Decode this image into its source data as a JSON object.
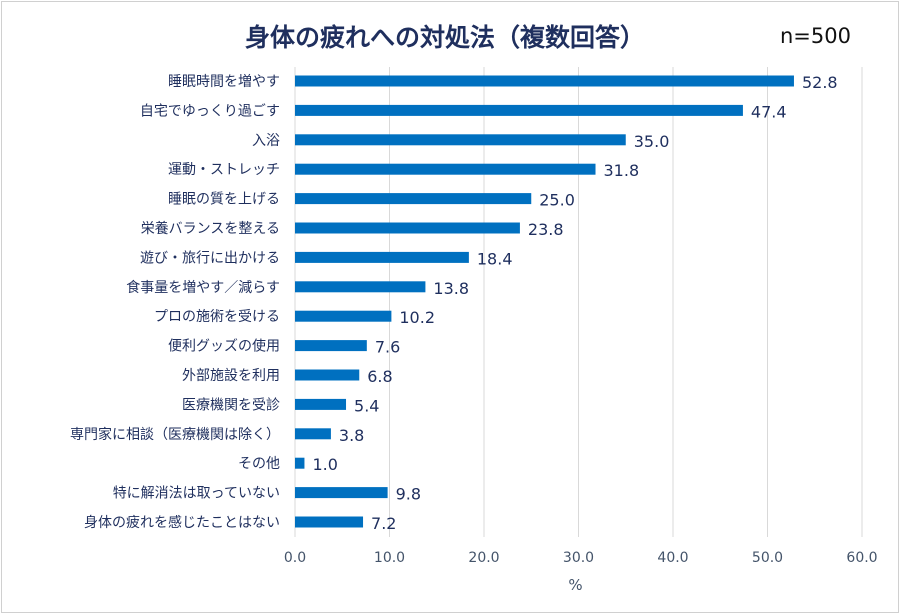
{
  "title": "身体の疲れへの対処法（複数回答）",
  "sample_size": "n=500",
  "chart_data": {
    "type": "bar",
    "orientation": "horizontal",
    "title": "身体の疲れへの対処法（複数回答）",
    "xlabel": "%",
    "ylabel": "",
    "xlim": [
      0,
      60
    ],
    "ticks": [
      "0.0",
      "10.0",
      "20.0",
      "30.0",
      "40.0",
      "50.0",
      "60.0"
    ],
    "grid": true,
    "bar_color": "#0070c0",
    "categories": [
      "睡眠時間を増やす",
      "自宅でゆっくり過ごす",
      "入浴",
      "運動・ストレッチ",
      "睡眠の質を上げる",
      "栄養バランスを整える",
      "遊び・旅行に出かける",
      "食事量を増やす／減らす",
      "プロの施術を受ける",
      "便利グッズの使用",
      "外部施設を利用",
      "医療機関を受診",
      "専門家に相談（医療機関は除く）",
      "その他",
      "特に解消法は取っていない",
      "身体の疲れを感じたことはない"
    ],
    "values": [
      52.8,
      47.4,
      35.0,
      31.8,
      25.0,
      23.8,
      18.4,
      13.8,
      10.2,
      7.6,
      6.8,
      5.4,
      3.8,
      1.0,
      9.8,
      7.2
    ],
    "value_labels": [
      "52.8",
      "47.4",
      "35.0",
      "31.8",
      "25.0",
      "23.8",
      "18.4",
      "13.8",
      "10.2",
      "7.6",
      "6.8",
      "5.4",
      "3.8",
      "1.0",
      "9.8",
      "7.2"
    ]
  }
}
